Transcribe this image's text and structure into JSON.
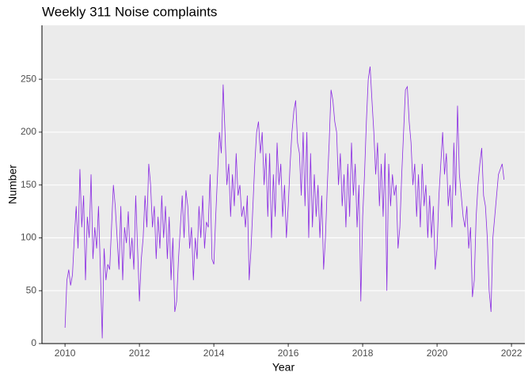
{
  "chart_data": {
    "type": "line",
    "title": "Weekly 311 Noise complaints",
    "x_label": "Year",
    "y_label": "Number",
    "color": "#8a2be2",
    "grid": true,
    "xlim": [
      2009.38,
      2022.36
    ],
    "xticks": [
      2010,
      2012,
      2014,
      2016,
      2018,
      2020,
      2022
    ],
    "ylim": [
      0,
      301
    ],
    "yticks": [
      0,
      50,
      100,
      150,
      200,
      250
    ],
    "x": [
      2010,
      2010.05,
      2010.1,
      2010.15,
      2010.2,
      2010.25,
      2010.3,
      2010.35,
      2010.4,
      2010.45,
      2010.5,
      2010.55,
      2010.6,
      2010.65,
      2010.7,
      2010.75,
      2010.8,
      2010.85,
      2010.9,
      2010.95,
      2011,
      2011.05,
      2011.1,
      2011.15,
      2011.2,
      2011.25,
      2011.3,
      2011.35,
      2011.4,
      2011.45,
      2011.5,
      2011.55,
      2011.6,
      2011.65,
      2011.7,
      2011.75,
      2011.8,
      2011.85,
      2011.9,
      2011.95,
      2012,
      2012.05,
      2012.1,
      2012.15,
      2012.2,
      2012.25,
      2012.3,
      2012.35,
      2012.4,
      2012.45,
      2012.5,
      2012.55,
      2012.6,
      2012.65,
      2012.7,
      2012.75,
      2012.8,
      2012.85,
      2012.9,
      2012.95,
      2013,
      2013.05,
      2013.1,
      2013.15,
      2013.2,
      2013.25,
      2013.3,
      2013.35,
      2013.4,
      2013.45,
      2013.5,
      2013.55,
      2013.6,
      2013.65,
      2013.7,
      2013.75,
      2013.8,
      2013.85,
      2013.9,
      2013.95,
      2014,
      2014.05,
      2014.1,
      2014.15,
      2014.2,
      2014.25,
      2014.3,
      2014.35,
      2014.4,
      2014.45,
      2014.5,
      2014.55,
      2014.6,
      2014.65,
      2014.7,
      2014.75,
      2014.8,
      2014.85,
      2014.9,
      2014.95,
      2015,
      2015.05,
      2015.1,
      2015.15,
      2015.2,
      2015.25,
      2015.3,
      2015.35,
      2015.4,
      2015.45,
      2015.5,
      2015.55,
      2015.6,
      2015.65,
      2015.7,
      2015.75,
      2015.8,
      2015.85,
      2015.9,
      2015.95,
      2016,
      2016.05,
      2016.1,
      2016.15,
      2016.2,
      2016.25,
      2016.3,
      2016.35,
      2016.4,
      2016.45,
      2016.5,
      2016.55,
      2016.6,
      2016.65,
      2016.7,
      2016.75,
      2016.8,
      2016.85,
      2016.9,
      2016.95,
      2017,
      2017.05,
      2017.1,
      2017.15,
      2017.2,
      2017.25,
      2017.3,
      2017.35,
      2017.4,
      2017.45,
      2017.5,
      2017.55,
      2017.6,
      2017.65,
      2017.7,
      2017.75,
      2017.8,
      2017.85,
      2017.9,
      2017.95,
      2018,
      2018.05,
      2018.1,
      2018.15,
      2018.2,
      2018.25,
      2018.3,
      2018.35,
      2018.4,
      2018.45,
      2018.5,
      2018.55,
      2018.6,
      2018.65,
      2018.7,
      2018.75,
      2018.8,
      2018.85,
      2018.9,
      2018.95,
      2019,
      2019.05,
      2019.1,
      2019.15,
      2019.2,
      2019.25,
      2019.3,
      2019.35,
      2019.4,
      2019.45,
      2019.5,
      2019.55,
      2019.6,
      2019.65,
      2019.7,
      2019.75,
      2019.8,
      2019.85,
      2019.9,
      2019.95,
      2020,
      2020.05,
      2020.1,
      2020.15,
      2020.2,
      2020.25,
      2020.3,
      2020.35,
      2020.4,
      2020.45,
      2020.5,
      2020.55,
      2020.6,
      2020.65,
      2020.7,
      2020.75,
      2020.8,
      2020.85,
      2020.9,
      2020.95,
      2021,
      2021.05,
      2021.1,
      2021.15,
      2021.2,
      2021.25,
      2021.3,
      2021.35,
      2021.4,
      2021.45,
      2021.5,
      2021.55,
      2021.6,
      2021.65,
      2021.7,
      2021.75,
      2021.8
    ],
    "values": [
      15,
      60,
      70,
      55,
      65,
      100,
      130,
      90,
      165,
      110,
      140,
      60,
      120,
      100,
      160,
      80,
      110,
      90,
      130,
      70,
      5,
      90,
      60,
      75,
      70,
      110,
      150,
      130,
      100,
      70,
      130,
      60,
      110,
      95,
      125,
      80,
      100,
      70,
      140,
      90,
      40,
      80,
      100,
      140,
      110,
      170,
      150,
      110,
      130,
      80,
      120,
      90,
      140,
      100,
      130,
      80,
      120,
      60,
      100,
      30,
      40,
      80,
      110,
      140,
      100,
      145,
      130,
      90,
      110,
      60,
      100,
      80,
      130,
      100,
      140,
      90,
      115,
      110,
      160,
      80,
      75,
      120,
      160,
      200,
      180,
      245,
      200,
      150,
      170,
      120,
      160,
      130,
      180,
      140,
      150,
      120,
      130,
      110,
      140,
      60,
      90,
      130,
      170,
      200,
      210,
      180,
      200,
      150,
      180,
      120,
      180,
      100,
      160,
      120,
      190,
      150,
      170,
      120,
      150,
      100,
      130,
      170,
      200,
      220,
      230,
      190,
      180,
      140,
      200,
      130,
      200,
      100,
      180,
      110,
      160,
      120,
      150,
      100,
      140,
      70,
      100,
      150,
      190,
      240,
      230,
      210,
      200,
      150,
      180,
      130,
      160,
      110,
      170,
      120,
      190,
      140,
      170,
      110,
      150,
      40,
      120,
      160,
      210,
      250,
      262,
      230,
      200,
      160,
      190,
      130,
      170,
      120,
      180,
      50,
      170,
      130,
      160,
      140,
      150,
      90,
      110,
      160,
      200,
      240,
      243,
      210,
      190,
      150,
      170,
      120,
      160,
      110,
      170,
      130,
      150,
      100,
      140,
      100,
      130,
      70,
      90,
      140,
      170,
      200,
      160,
      180,
      130,
      150,
      110,
      190,
      140,
      225,
      160,
      140,
      120,
      110,
      130,
      90,
      110,
      44,
      60,
      120,
      150,
      170,
      185,
      140,
      130,
      100,
      50,
      30,
      100,
      120,
      140,
      160,
      165,
      170,
      155
    ]
  }
}
